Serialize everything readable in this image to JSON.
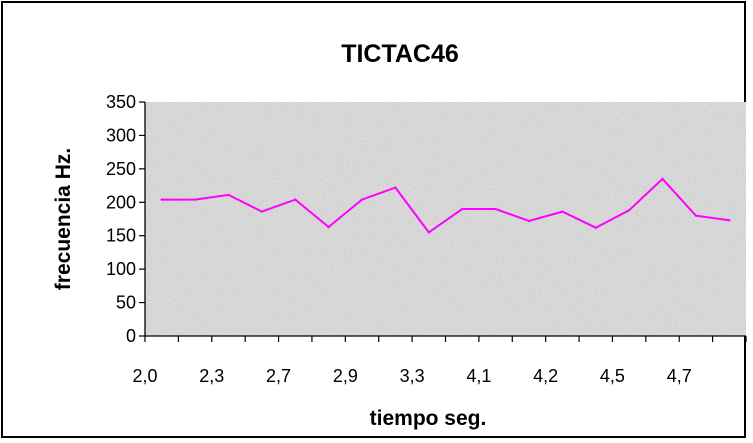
{
  "chart_data": {
    "type": "line",
    "title": "TICTAC46",
    "xlabel": "tiempo seg.",
    "ylabel": "frecuencia Hz.",
    "ylim": [
      0,
      350
    ],
    "yticks": [
      0,
      50,
      100,
      150,
      200,
      250,
      300,
      350
    ],
    "xtick_labels": [
      "2,0",
      "2,3",
      "2,7",
      "2,9",
      "3,3",
      "4,1",
      "4,2",
      "4,5",
      "4,7"
    ],
    "legend": "none",
    "grid": false,
    "plot_background": "gray speckled texture",
    "series": [
      {
        "color": "#ff00ff",
        "values": [
          204,
          204,
          211,
          186,
          204,
          163,
          204,
          222,
          155,
          190,
          190,
          172,
          186,
          162,
          188,
          235,
          180,
          173
        ]
      }
    ]
  }
}
